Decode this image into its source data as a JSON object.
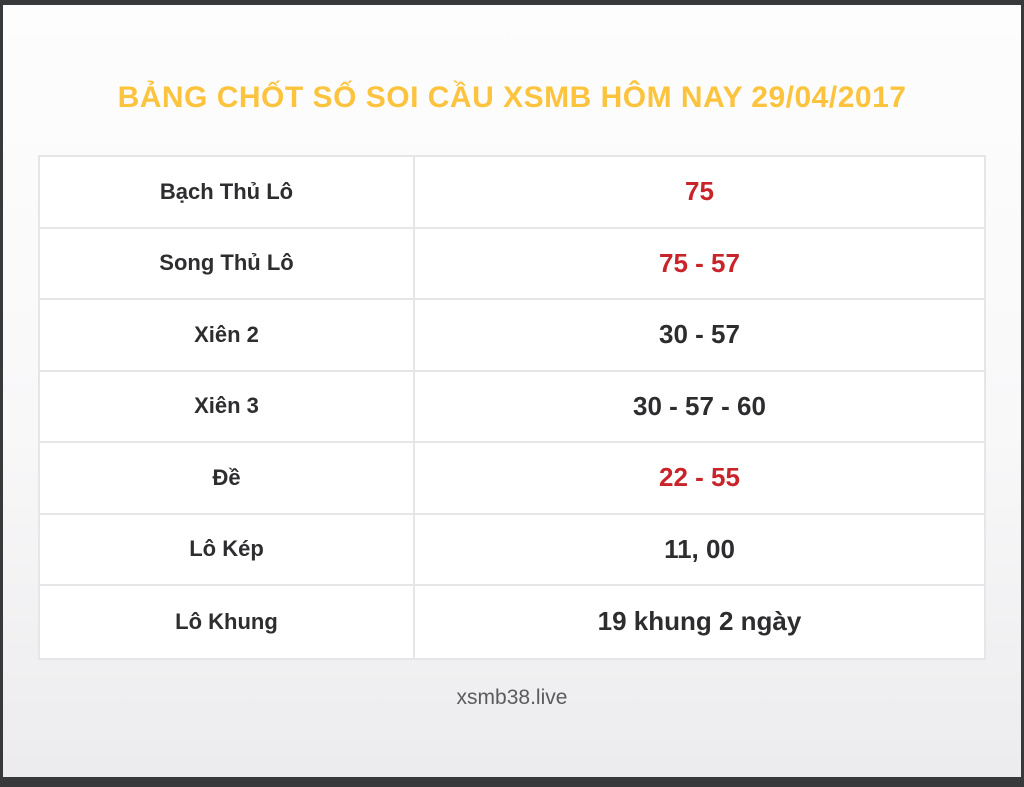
{
  "header": {
    "title": "BẢNG CHỐT SỐ SOI CẦU XSMB HÔM NAY 29/04/2017"
  },
  "table": {
    "rows": [
      {
        "label": "Bạch Thủ Lô",
        "value": "75",
        "color": "red"
      },
      {
        "label": "Song Thủ Lô",
        "value": "75 - 57",
        "color": "red"
      },
      {
        "label": "Xiên 2",
        "value": "30 - 57",
        "color": "dark"
      },
      {
        "label": "Xiên 3",
        "value": "30 - 57 - 60",
        "color": "dark"
      },
      {
        "label": "Đề",
        "value": "22 - 55",
        "color": "red"
      },
      {
        "label": "Lô Kép",
        "value": "11, 00",
        "color": "dark"
      },
      {
        "label": "Lô Khung",
        "value": "19 khung 2 ngày",
        "color": "dark"
      }
    ]
  },
  "footer": {
    "site": "xsmb38.live"
  },
  "colors": {
    "title": "#fcc43e",
    "value_red": "#c8242a",
    "value_dark": "#2d2d2f",
    "label": "#2e2e30",
    "border": "#e6e6e9",
    "frame": "#37393b",
    "footer_text": "#5b5b5e"
  }
}
